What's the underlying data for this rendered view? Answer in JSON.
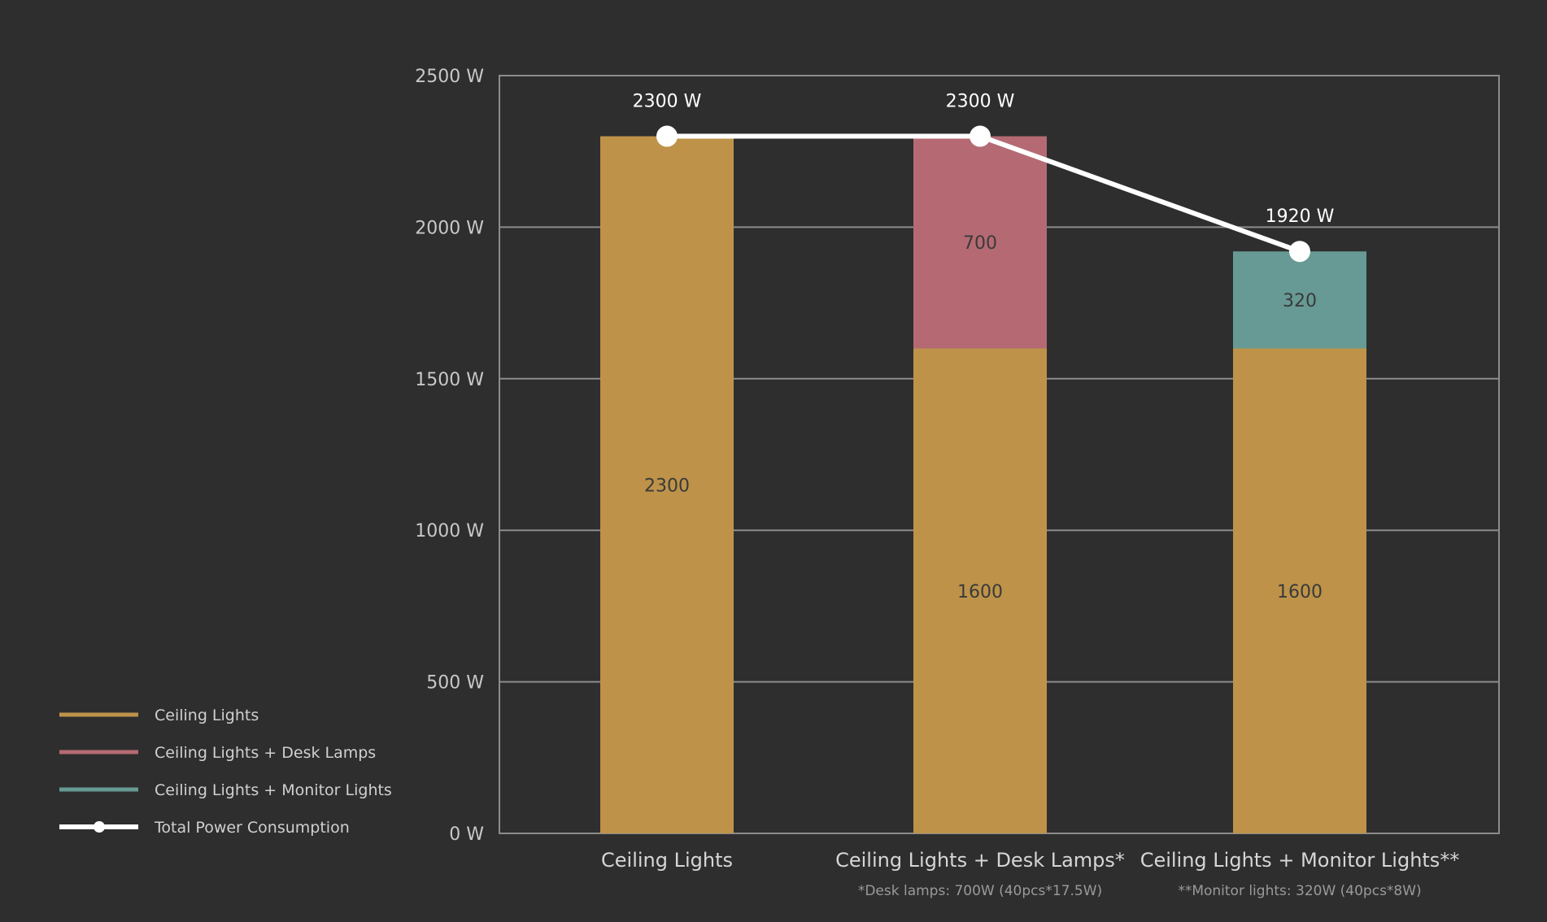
{
  "chart_data": {
    "type": "bar",
    "stacked": true,
    "unit": "W",
    "categories": [
      "Ceiling Lights",
      "Ceiling Lights + Desk Lamps*",
      "Ceiling Lights + Monitor Lights**"
    ],
    "category_notes": [
      "",
      "*Desk lamps: 700W (40pcs*17.5W)",
      "**Monitor lights: 320W (40pcs*8W)"
    ],
    "series": [
      {
        "name": "Ceiling Lights",
        "color": "#be9349",
        "values": [
          2300,
          1600,
          1600
        ]
      },
      {
        "name": "Ceiling Lights + Desk Lamps",
        "color": "#b56a73",
        "values": [
          0,
          700,
          0
        ]
      },
      {
        "name": "Ceiling Lights + Monitor Lights",
        "color": "#679a94",
        "values": [
          0,
          0,
          320
        ]
      }
    ],
    "segment_labels": [
      [
        "2300",
        "",
        ""
      ],
      [
        "1600",
        "700",
        ""
      ],
      [
        "1600",
        "",
        "320"
      ]
    ],
    "line": {
      "name": "Total Power Consumption",
      "color": "#ffffff",
      "values": [
        2300,
        2300,
        1920
      ],
      "labels": [
        "2300 W",
        "2300 W",
        "1920 W"
      ]
    },
    "yticks": [
      0,
      500,
      1000,
      1500,
      2000,
      2500
    ],
    "ytick_labels": [
      "0 W",
      "500 W",
      "1000 W",
      "1500 W",
      "2000 W",
      "2500 W"
    ],
    "ylim": [
      0,
      2500
    ],
    "grid": true,
    "legend_position": "bottom-left"
  }
}
